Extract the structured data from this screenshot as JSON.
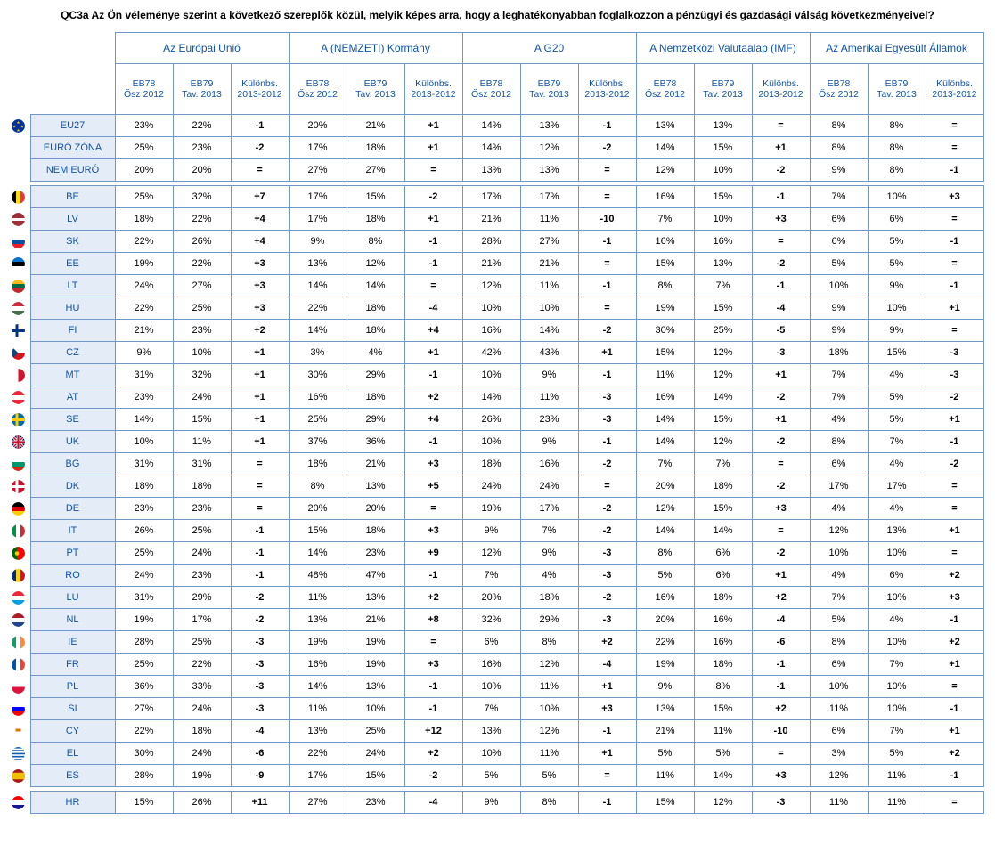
{
  "title": "QC3a Az Ön véleménye szerint a következő szereplők közül, melyik képes arra, hogy a leghatékonyabban foglalkozzon a pénzügyi és gazdasági válság következményeivel?",
  "colors": {
    "border": "#6d98c7",
    "header_text": "#1254a4",
    "label_bg": "#e4ecf7",
    "body_bg": "#ffffff"
  },
  "groups": [
    "Az Európai Unió",
    "A (NEMZETI) Kormány",
    "A G20",
    "A Nemzetközi Valutaalap (IMF)",
    "Az Amerikai Egyesült Államok"
  ],
  "subheaders": [
    "EB78 Ősz 2012",
    "EB79 Tav. 2013",
    "Különbs. 2013-2012"
  ],
  "rows": [
    {
      "code": "EU27",
      "flag": "eu",
      "v": [
        "23%",
        "22%",
        "-1",
        "20%",
        "21%",
        "+1",
        "14%",
        "13%",
        "-1",
        "13%",
        "13%",
        "=",
        "8%",
        "8%",
        "="
      ]
    },
    {
      "code": "EURÓ ZÓNA",
      "flag": "",
      "v": [
        "25%",
        "23%",
        "-2",
        "17%",
        "18%",
        "+1",
        "14%",
        "12%",
        "-2",
        "14%",
        "15%",
        "+1",
        "8%",
        "8%",
        "="
      ]
    },
    {
      "code": "NEM EURÓ",
      "flag": "",
      "v": [
        "20%",
        "20%",
        "=",
        "27%",
        "27%",
        "=",
        "13%",
        "13%",
        "=",
        "12%",
        "10%",
        "-2",
        "9%",
        "8%",
        "-1"
      ]
    },
    {
      "code": "BE",
      "flag": "be",
      "v": [
        "25%",
        "32%",
        "+7",
        "17%",
        "15%",
        "-2",
        "17%",
        "17%",
        "=",
        "16%",
        "15%",
        "-1",
        "7%",
        "10%",
        "+3"
      ]
    },
    {
      "code": "LV",
      "flag": "lv",
      "v": [
        "18%",
        "22%",
        "+4",
        "17%",
        "18%",
        "+1",
        "21%",
        "11%",
        "-10",
        "7%",
        "10%",
        "+3",
        "6%",
        "6%",
        "="
      ]
    },
    {
      "code": "SK",
      "flag": "sk",
      "v": [
        "22%",
        "26%",
        "+4",
        "9%",
        "8%",
        "-1",
        "28%",
        "27%",
        "-1",
        "16%",
        "16%",
        "=",
        "6%",
        "5%",
        "-1"
      ]
    },
    {
      "code": "EE",
      "flag": "ee",
      "v": [
        "19%",
        "22%",
        "+3",
        "13%",
        "12%",
        "-1",
        "21%",
        "21%",
        "=",
        "15%",
        "13%",
        "-2",
        "5%",
        "5%",
        "="
      ]
    },
    {
      "code": "LT",
      "flag": "lt",
      "v": [
        "24%",
        "27%",
        "+3",
        "14%",
        "14%",
        "=",
        "12%",
        "11%",
        "-1",
        "8%",
        "7%",
        "-1",
        "10%",
        "9%",
        "-1"
      ]
    },
    {
      "code": "HU",
      "flag": "hu",
      "v": [
        "22%",
        "25%",
        "+3",
        "22%",
        "18%",
        "-4",
        "10%",
        "10%",
        "=",
        "19%",
        "15%",
        "-4",
        "9%",
        "10%",
        "+1"
      ]
    },
    {
      "code": "FI",
      "flag": "fi",
      "v": [
        "21%",
        "23%",
        "+2",
        "14%",
        "18%",
        "+4",
        "16%",
        "14%",
        "-2",
        "30%",
        "25%",
        "-5",
        "9%",
        "9%",
        "="
      ]
    },
    {
      "code": "CZ",
      "flag": "cz",
      "v": [
        "9%",
        "10%",
        "+1",
        "3%",
        "4%",
        "+1",
        "42%",
        "43%",
        "+1",
        "15%",
        "12%",
        "-3",
        "18%",
        "15%",
        "-3"
      ]
    },
    {
      "code": "MT",
      "flag": "mt",
      "v": [
        "31%",
        "32%",
        "+1",
        "30%",
        "29%",
        "-1",
        "10%",
        "9%",
        "-1",
        "11%",
        "12%",
        "+1",
        "7%",
        "4%",
        "-3"
      ]
    },
    {
      "code": "AT",
      "flag": "at",
      "v": [
        "23%",
        "24%",
        "+1",
        "16%",
        "18%",
        "+2",
        "14%",
        "11%",
        "-3",
        "16%",
        "14%",
        "-2",
        "7%",
        "5%",
        "-2"
      ]
    },
    {
      "code": "SE",
      "flag": "se",
      "v": [
        "14%",
        "15%",
        "+1",
        "25%",
        "29%",
        "+4",
        "26%",
        "23%",
        "-3",
        "14%",
        "15%",
        "+1",
        "4%",
        "5%",
        "+1"
      ]
    },
    {
      "code": "UK",
      "flag": "uk",
      "v": [
        "10%",
        "11%",
        "+1",
        "37%",
        "36%",
        "-1",
        "10%",
        "9%",
        "-1",
        "14%",
        "12%",
        "-2",
        "8%",
        "7%",
        "-1"
      ]
    },
    {
      "code": "BG",
      "flag": "bg",
      "v": [
        "31%",
        "31%",
        "=",
        "18%",
        "21%",
        "+3",
        "18%",
        "16%",
        "-2",
        "7%",
        "7%",
        "=",
        "6%",
        "4%",
        "-2"
      ]
    },
    {
      "code": "DK",
      "flag": "dk",
      "v": [
        "18%",
        "18%",
        "=",
        "8%",
        "13%",
        "+5",
        "24%",
        "24%",
        "=",
        "20%",
        "18%",
        "-2",
        "17%",
        "17%",
        "="
      ]
    },
    {
      "code": "DE",
      "flag": "de",
      "v": [
        "23%",
        "23%",
        "=",
        "20%",
        "20%",
        "=",
        "19%",
        "17%",
        "-2",
        "12%",
        "15%",
        "+3",
        "4%",
        "4%",
        "="
      ]
    },
    {
      "code": "IT",
      "flag": "it",
      "v": [
        "26%",
        "25%",
        "-1",
        "15%",
        "18%",
        "+3",
        "9%",
        "7%",
        "-2",
        "14%",
        "14%",
        "=",
        "12%",
        "13%",
        "+1"
      ]
    },
    {
      "code": "PT",
      "flag": "pt",
      "v": [
        "25%",
        "24%",
        "-1",
        "14%",
        "23%",
        "+9",
        "12%",
        "9%",
        "-3",
        "8%",
        "6%",
        "-2",
        "10%",
        "10%",
        "="
      ]
    },
    {
      "code": "RO",
      "flag": "ro",
      "v": [
        "24%",
        "23%",
        "-1",
        "48%",
        "47%",
        "-1",
        "7%",
        "4%",
        "-3",
        "5%",
        "6%",
        "+1",
        "4%",
        "6%",
        "+2"
      ]
    },
    {
      "code": "LU",
      "flag": "lu",
      "v": [
        "31%",
        "29%",
        "-2",
        "11%",
        "13%",
        "+2",
        "20%",
        "18%",
        "-2",
        "16%",
        "18%",
        "+2",
        "7%",
        "10%",
        "+3"
      ]
    },
    {
      "code": "NL",
      "flag": "nl",
      "v": [
        "19%",
        "17%",
        "-2",
        "13%",
        "21%",
        "+8",
        "32%",
        "29%",
        "-3",
        "20%",
        "16%",
        "-4",
        "5%",
        "4%",
        "-1"
      ]
    },
    {
      "code": "IE",
      "flag": "ie",
      "v": [
        "28%",
        "25%",
        "-3",
        "19%",
        "19%",
        "=",
        "6%",
        "8%",
        "+2",
        "22%",
        "16%",
        "-6",
        "8%",
        "10%",
        "+2"
      ]
    },
    {
      "code": "FR",
      "flag": "fr",
      "v": [
        "25%",
        "22%",
        "-3",
        "16%",
        "19%",
        "+3",
        "16%",
        "12%",
        "-4",
        "19%",
        "18%",
        "-1",
        "6%",
        "7%",
        "+1"
      ]
    },
    {
      "code": "PL",
      "flag": "pl",
      "v": [
        "36%",
        "33%",
        "-3",
        "14%",
        "13%",
        "-1",
        "10%",
        "11%",
        "+1",
        "9%",
        "8%",
        "-1",
        "10%",
        "10%",
        "="
      ]
    },
    {
      "code": "SI",
      "flag": "si",
      "v": [
        "27%",
        "24%",
        "-3",
        "11%",
        "10%",
        "-1",
        "7%",
        "10%",
        "+3",
        "13%",
        "15%",
        "+2",
        "11%",
        "10%",
        "-1"
      ]
    },
    {
      "code": "CY",
      "flag": "cy",
      "v": [
        "22%",
        "18%",
        "-4",
        "13%",
        "25%",
        "+12",
        "13%",
        "12%",
        "-1",
        "21%",
        "11%",
        "-10",
        "6%",
        "7%",
        "+1"
      ]
    },
    {
      "code": "EL",
      "flag": "el",
      "v": [
        "30%",
        "24%",
        "-6",
        "22%",
        "24%",
        "+2",
        "10%",
        "11%",
        "+1",
        "5%",
        "5%",
        "=",
        "3%",
        "5%",
        "+2"
      ]
    },
    {
      "code": "ES",
      "flag": "es",
      "v": [
        "28%",
        "19%",
        "-9",
        "17%",
        "15%",
        "-2",
        "5%",
        "5%",
        "=",
        "11%",
        "14%",
        "+3",
        "12%",
        "11%",
        "-1"
      ]
    },
    {
      "code": "HR",
      "flag": "hr",
      "v": [
        "15%",
        "26%",
        "+11",
        "27%",
        "23%",
        "-4",
        "9%",
        "8%",
        "-1",
        "15%",
        "12%",
        "-3",
        "11%",
        "11%",
        "="
      ]
    }
  ],
  "gap_after": [
    "NEM EURÓ",
    "ES"
  ],
  "flags": {
    "eu": [
      [
        "#003399",
        "M0 0h10v10H0z"
      ],
      [
        "#ffcc00",
        "M5 1.2l.3.9h.9l-.7.5.3.9-.8-.6-.8.6.3-.9-.7-.5h.9z M5 7l.3.9h.9l-.7.5.3.9-.8-.6-.8.6.3-.9-.7-.5h.9z M2.1 4.1l.3.9h.9l-.7.5.3.9-.8-.6-.8.6.3-.9-.7-.5h.9z M7.9 4.1l.3.9h.9l-.7.5.3.9-.8-.6-.8.6.3-.9-.7-.5h.9z"
      ]
    ],
    "be": [
      [
        "#000",
        "M0 0h3.33v10H0z"
      ],
      [
        "#fdda24",
        "M3.33 0h3.34v10H3.33z"
      ],
      [
        "#ef3340",
        "M6.67 0H10v10H6.67z"
      ]
    ],
    "lv": [
      [
        "#9e3039",
        "M0 0h10v10H0z"
      ],
      [
        "#fff",
        "M0 4h10v2H0z"
      ]
    ],
    "sk": [
      [
        "#fff",
        "M0 0h10v3.33H0z"
      ],
      [
        "#0b4ea2",
        "M0 3.33h10v3.34H0z"
      ],
      [
        "#ee1c25",
        "M0 6.67h10V10H0z"
      ]
    ],
    "ee": [
      [
        "#0072ce",
        "M0 0h10v3.33H0z"
      ],
      [
        "#000",
        "M0 3.33h10v3.34H0z"
      ],
      [
        "#fff",
        "M0 6.67h10V10H0z"
      ]
    ],
    "lt": [
      [
        "#fdb913",
        "M0 0h10v3.33H0z"
      ],
      [
        "#006a44",
        "M0 3.33h10v3.34H0z"
      ],
      [
        "#c1272d",
        "M0 6.67h10V10H0z"
      ]
    ],
    "hu": [
      [
        "#cd2a3e",
        "M0 0h10v3.33H0z"
      ],
      [
        "#fff",
        "M0 3.33h10v3.34H0z"
      ],
      [
        "#436f4d",
        "M0 6.67h10V10H0z"
      ]
    ],
    "fi": [
      [
        "#fff",
        "M0 0h10v10H0z"
      ],
      [
        "#003580",
        "M0 4h10v2H0z M3 0h2v10H3z"
      ]
    ],
    "cz": [
      [
        "#fff",
        "M0 0h10v5H0z"
      ],
      [
        "#d7141a",
        "M0 5h10v5H0z"
      ],
      [
        "#11457e",
        "M0 0l5 5-5 5z"
      ]
    ],
    "mt": [
      [
        "#fff",
        "M0 0h5v10H0z"
      ],
      [
        "#cf142b",
        "M5 0h5v10H5z"
      ]
    ],
    "at": [
      [
        "#ed2939",
        "M0 0h10v10H0z"
      ],
      [
        "#fff",
        "M0 3.33h10v3.34H0z"
      ]
    ],
    "se": [
      [
        "#006aa7",
        "M0 0h10v10H0z"
      ],
      [
        "#fecc00",
        "M0 4h10v2H0z M3 0h2v10H3z"
      ]
    ],
    "uk": [
      [
        "#012169",
        "M0 0h10v10H0z"
      ],
      [
        "#fff",
        "M0 0l10 10M10 0L0 10",
        "stroke",
        "2"
      ],
      [
        "#c8102e",
        "M0 0l10 10M10 0L0 10",
        "stroke",
        "1"
      ],
      [
        "#fff",
        "M5 0v10M0 5h10",
        "stroke",
        "2.5"
      ],
      [
        "#c8102e",
        "M5 0v10M0 5h10",
        "stroke",
        "1.5"
      ]
    ],
    "bg": [
      [
        "#fff",
        "M0 0h10v3.33H0z"
      ],
      [
        "#00966e",
        "M0 3.33h10v3.34H0z"
      ],
      [
        "#d62612",
        "M0 6.67h10V10H0z"
      ]
    ],
    "dk": [
      [
        "#c8102e",
        "M0 0h10v10H0z"
      ],
      [
        "#fff",
        "M0 4h10v2H0z M3 0h2v10H3z"
      ]
    ],
    "de": [
      [
        "#000",
        "M0 0h10v3.33H0z"
      ],
      [
        "#dd0000",
        "M0 3.33h10v3.34H0z"
      ],
      [
        "#ffce00",
        "M0 6.67h10V10H0z"
      ]
    ],
    "it": [
      [
        "#009246",
        "M0 0h3.33v10H0z"
      ],
      [
        "#fff",
        "M3.33 0h3.34v10H3.33z"
      ],
      [
        "#ce2b37",
        "M6.67 0H10v10H6.67z"
      ]
    ],
    "pt": [
      [
        "#006600",
        "M0 0h4v10H0z"
      ],
      [
        "#ff0000",
        "M4 0h6v10H4z"
      ],
      [
        "#ffcc00",
        "M4 5 m-1.5 0 a1.5 1.5 0 1 0 3 0 a1.5 1.5 0 1 0 -3 0",
        "fillcircle"
      ]
    ],
    "ro": [
      [
        "#002b7f",
        "M0 0h3.33v10H0z"
      ],
      [
        "#fcd116",
        "M3.33 0h3.34v10H3.33z"
      ],
      [
        "#ce1126",
        "M6.67 0H10v10H6.67z"
      ]
    ],
    "lu": [
      [
        "#ed2939",
        "M0 0h10v3.33H0z"
      ],
      [
        "#fff",
        "M0 3.33h10v3.34H0z"
      ],
      [
        "#00a1de",
        "M0 6.67h10V10H0z"
      ]
    ],
    "nl": [
      [
        "#ae1c28",
        "M0 0h10v3.33H0z"
      ],
      [
        "#fff",
        "M0 3.33h10v3.34H0z"
      ],
      [
        "#21468b",
        "M0 6.67h10V10H0z"
      ]
    ],
    "ie": [
      [
        "#169b62",
        "M0 0h3.33v10H0z"
      ],
      [
        "#fff",
        "M3.33 0h3.34v10H3.33z"
      ],
      [
        "#ff883e",
        "M6.67 0H10v10H6.67z"
      ]
    ],
    "fr": [
      [
        "#0055a4",
        "M0 0h3.33v10H0z"
      ],
      [
        "#fff",
        "M3.33 0h3.34v10H3.33z"
      ],
      [
        "#ef4135",
        "M6.67 0H10v10H6.67z"
      ]
    ],
    "pl": [
      [
        "#fff",
        "M0 0h10v5H0z"
      ],
      [
        "#dc143c",
        "M0 5h10v5H0z"
      ]
    ],
    "si": [
      [
        "#fff",
        "M0 0h10v3.33H0z"
      ],
      [
        "#0000ff",
        "M0 3.33h10v3.34H0z"
      ],
      [
        "#ff0000",
        "M0 6.67h10V10H0z"
      ]
    ],
    "cy": [
      [
        "#fff",
        "M0 0h10v10H0z"
      ],
      [
        "#d57800",
        "M3 3h4v2H3z"
      ]
    ],
    "el": [
      [
        "#0d5eaf",
        "M0 0h10v10H0z"
      ],
      [
        "#fff",
        "M0 1.1h10v1.1H0zM0 3.3h10v1.1H0zM0 5.5h10v1.1H0zM0 7.7h10v1.1H0z"
      ]
    ],
    "es": [
      [
        "#aa151b",
        "M0 0h10v10H0z"
      ],
      [
        "#f1bf00",
        "M0 2.5h10v5H0z"
      ]
    ],
    "hr": [
      [
        "#ff0000",
        "M0 0h10v3.33H0z"
      ],
      [
        "#fff",
        "M0 3.33h10v3.34H0z"
      ],
      [
        "#171796",
        "M0 6.67h10V10H0z"
      ]
    ]
  }
}
